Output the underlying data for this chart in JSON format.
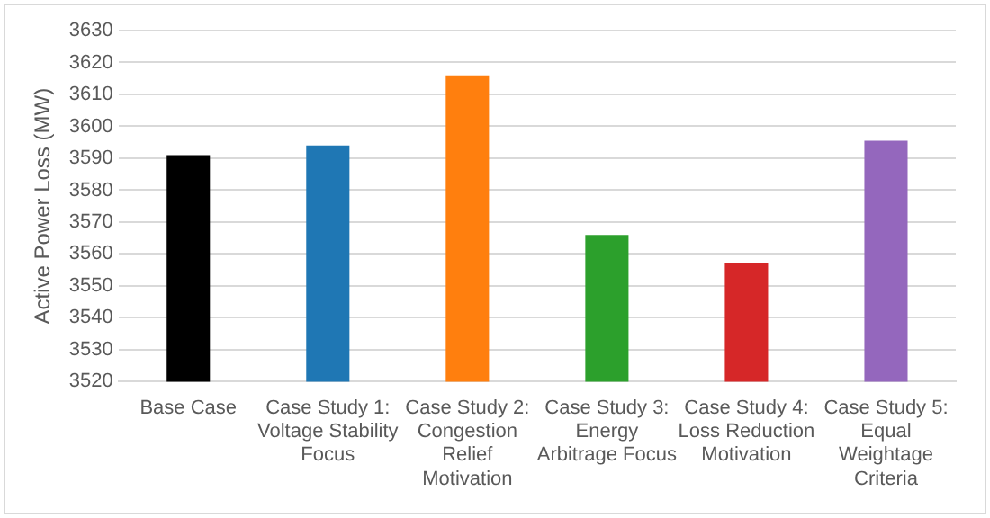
{
  "chart_data": {
    "type": "bar",
    "ylabel": "Active Power Loss (MW)",
    "categories": [
      "Base Case",
      "Case Study 1: Voltage Stability Focus",
      "Case Study 2: Congestion Relief Motivation",
      "Case Study 3: Energy Arbitrage Focus",
      "Case Study 4: Loss Reduction Motivation",
      "Case Study 5: Equal Weightage Criteria"
    ],
    "values": [
      3591,
      3594,
      3616,
      3566,
      3557,
      3595.5
    ],
    "colors": [
      "#000000",
      "#1f77b4",
      "#ff7f0e",
      "#2ca02c",
      "#d62728",
      "#9467bd"
    ],
    "ylim": [
      3520,
      3630
    ],
    "yticks": [
      3520,
      3530,
      3540,
      3550,
      3560,
      3570,
      3580,
      3590,
      3600,
      3610,
      3620,
      3630
    ],
    "grid": "y"
  }
}
